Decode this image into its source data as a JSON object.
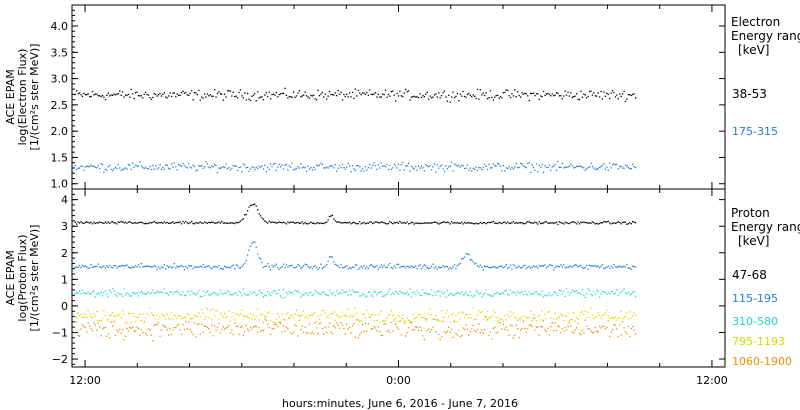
{
  "footer": {
    "xlabel": "hours:minutes, June  6, 2016 - June  7, 2016"
  },
  "chart_data": [
    {
      "type": "scatter",
      "ylabel_lines": [
        "ACE EPAM",
        "log(Electron Flux)",
        "[1/(cm²s ster MeV)]"
      ],
      "ylim": [
        0.9,
        4.4
      ],
      "yticks": [
        1.0,
        1.5,
        2.0,
        2.5,
        3.0,
        3.5,
        4.0
      ],
      "ytick_labels": [
        "1.0",
        "1.5",
        "2.0",
        "2.5",
        "3.0",
        "3.5",
        "4.0"
      ],
      "legend": {
        "title_lines": [
          "Electron",
          "Energy ranges",
          "[keV]"
        ],
        "placement": "right"
      },
      "series": [
        {
          "name": "38-53",
          "color": "#000000",
          "base": 2.7,
          "noise": 0.08,
          "events": []
        },
        {
          "name": "175-315",
          "color": "#1e7dd6",
          "base": 1.33,
          "noise": 0.07,
          "events": []
        }
      ]
    },
    {
      "type": "scatter",
      "ylabel_lines": [
        "ACE EPAM",
        "log(Proton Flux)",
        "[1/(cm²s ster MeV)]"
      ],
      "ylim": [
        -2.3,
        4.4
      ],
      "yticks": [
        -2,
        -1,
        0,
        1,
        2,
        3,
        4
      ],
      "ytick_labels": [
        "−2",
        "−1",
        "0",
        "1",
        "2",
        "3",
        "4"
      ],
      "legend": {
        "title_lines": [
          "Proton",
          "Energy ranges",
          "[keV]"
        ],
        "placement": "right"
      },
      "series": [
        {
          "name": "47-68",
          "color": "#000000",
          "base": 3.15,
          "noise": 0.04,
          "events": [
            [
              18.4,
              0.7,
              0.3
            ],
            [
              21.4,
              0.3,
              0.12
            ]
          ]
        },
        {
          "name": "115-195",
          "color": "#1e7dd6",
          "base": 1.5,
          "noise": 0.08,
          "events": [
            [
              18.4,
              0.9,
              0.25
            ],
            [
              21.4,
              0.4,
              0.12
            ],
            [
              26.6,
              0.45,
              0.25
            ]
          ]
        },
        {
          "name": "310-580",
          "color": "#22d6d6",
          "base": 0.5,
          "noise": 0.12,
          "events": []
        },
        {
          "name": "795-1193",
          "color": "#d8d800",
          "base": -0.35,
          "noise": 0.2,
          "events": []
        },
        {
          "name": "1060-1900",
          "color": "#f08c00",
          "base": -0.85,
          "noise": 0.3,
          "events": []
        }
      ]
    }
  ],
  "time_axis": {
    "range_hours": [
      11.5,
      36.5
    ],
    "data_end_hours": 33.1,
    "major_ticks_hours": [
      12,
      24,
      36
    ],
    "major_labels": [
      "12:00",
      "0:00",
      "12:00"
    ],
    "minor_step_hours": 2
  }
}
